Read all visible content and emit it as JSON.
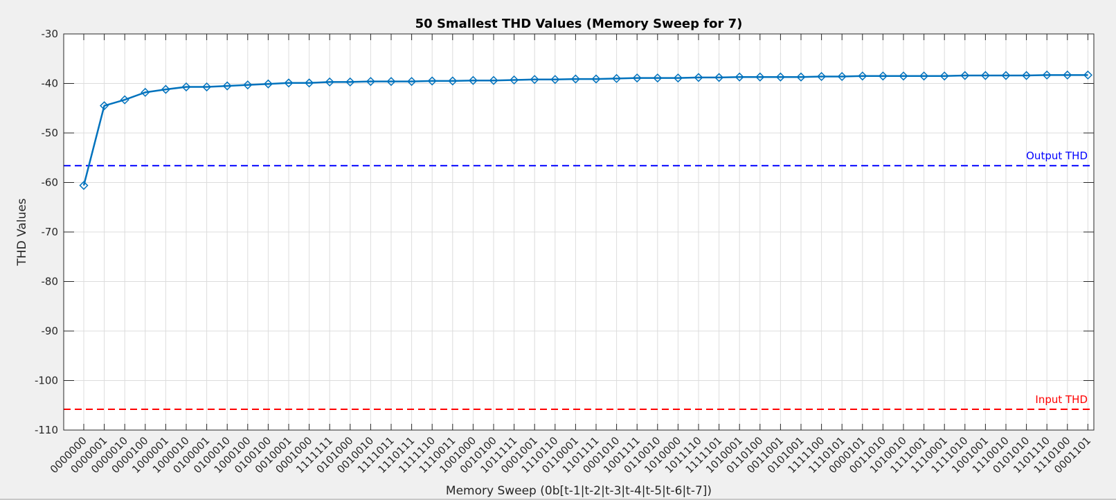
{
  "chart_data": {
    "type": "line",
    "title": "50 Smallest THD Values (Memory Sweep for 7)",
    "xlabel": "Memory Sweep (0b[t-1|t-2|t-3|t-4|t-5|t-6|t-7])",
    "ylabel": "THD Values",
    "ylim": [
      -110,
      -30
    ],
    "yticks": [
      -30,
      -40,
      -50,
      -60,
      -70,
      -80,
      -90,
      -100,
      -110
    ],
    "grid": true,
    "categories": [
      "0000000",
      "0000001",
      "0000010",
      "0000100",
      "1000001",
      "1000010",
      "0100001",
      "0100010",
      "1000100",
      "0100100",
      "0010001",
      "0001000",
      "1111111",
      "0101000",
      "0010010",
      "1111011",
      "1110111",
      "1111110",
      "1110011",
      "1001000",
      "0010100",
      "1011111",
      "0001001",
      "1110110",
      "0110001",
      "1101111",
      "0001010",
      "1001111",
      "0110010",
      "1010000",
      "1011110",
      "1111101",
      "1010001",
      "0110100",
      "0011001",
      "0101001",
      "1111100",
      "1110101",
      "0000101",
      "0011010",
      "1010010",
      "1111001",
      "1110001",
      "1111010",
      "1001001",
      "1110010",
      "0101010",
      "1101110",
      "1110100",
      "0001101"
    ],
    "series": [
      {
        "color": "#0072bd",
        "marker": "diamond",
        "values": [
          -60.6,
          -44.5,
          -43.3,
          -41.8,
          -41.2,
          -40.7,
          -40.7,
          -40.5,
          -40.3,
          -40.1,
          -39.9,
          -39.9,
          -39.7,
          -39.7,
          -39.6,
          -39.6,
          -39.6,
          -39.5,
          -39.5,
          -39.4,
          -39.4,
          -39.3,
          -39.2,
          -39.2,
          -39.1,
          -39.1,
          -39.0,
          -38.9,
          -38.9,
          -38.9,
          -38.8,
          -38.8,
          -38.7,
          -38.7,
          -38.7,
          -38.7,
          -38.6,
          -38.6,
          -38.5,
          -38.5,
          -38.5,
          -38.5,
          -38.5,
          -38.4,
          -38.4,
          -38.4,
          -38.4,
          -38.3,
          -38.3,
          -38.3
        ]
      }
    ],
    "reference_lines": [
      {
        "label": "Output THD",
        "value": -56.6,
        "color": "#0000ff",
        "style": "dashed"
      },
      {
        "label": "Input THD",
        "value": -105.8,
        "color": "#ff0000",
        "style": "dashed"
      }
    ]
  }
}
